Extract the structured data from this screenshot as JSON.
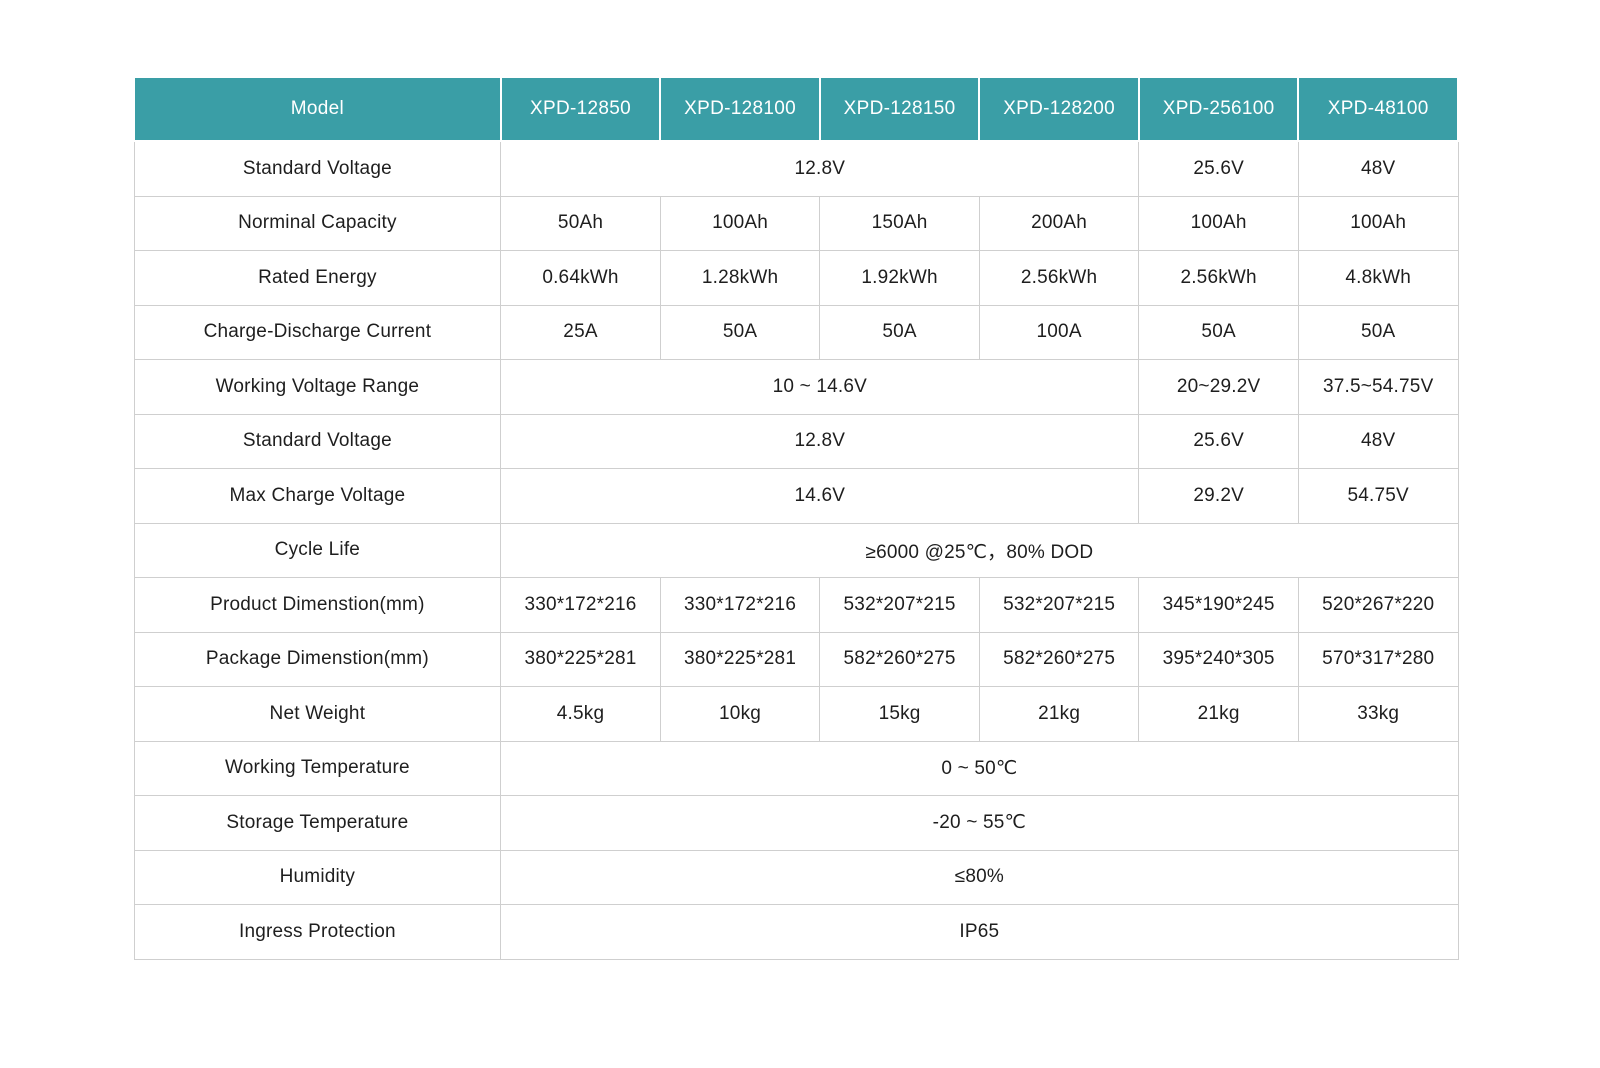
{
  "table": {
    "header_bg": "#3a9ea6",
    "header_text_color": "#ffffff",
    "border_color": "#cfcfcf",
    "columns": [
      "Model",
      "XPD-12850",
      "XPD-128100",
      "XPD-128150",
      "XPD-128200",
      "XPD-256100",
      "XPD-48100"
    ],
    "rows": [
      {
        "label": "Standard Voltage",
        "cells": [
          {
            "text": "12.8V",
            "span": 4
          },
          {
            "text": "25.6V"
          },
          {
            "text": "48V"
          }
        ]
      },
      {
        "label": "Norminal Capacity",
        "cells": [
          {
            "text": "50Ah"
          },
          {
            "text": "100Ah"
          },
          {
            "text": "150Ah"
          },
          {
            "text": "200Ah"
          },
          {
            "text": "100Ah"
          },
          {
            "text": "100Ah"
          }
        ]
      },
      {
        "label": "Rated Energy",
        "cells": [
          {
            "text": "0.64kWh"
          },
          {
            "text": "1.28kWh"
          },
          {
            "text": "1.92kWh"
          },
          {
            "text": "2.56kWh"
          },
          {
            "text": "2.56kWh"
          },
          {
            "text": "4.8kWh"
          }
        ]
      },
      {
        "label": "Charge-Discharge Current",
        "cells": [
          {
            "text": "25A"
          },
          {
            "text": "50A"
          },
          {
            "text": "50A"
          },
          {
            "text": "100A"
          },
          {
            "text": "50A"
          },
          {
            "text": "50A"
          }
        ]
      },
      {
        "label": "Working Voltage Range",
        "cells": [
          {
            "text": "10 ~ 14.6V",
            "span": 4
          },
          {
            "text": "20~29.2V"
          },
          {
            "text": "37.5~54.75V"
          }
        ]
      },
      {
        "label": "Standard Voltage",
        "cells": [
          {
            "text": "12.8V",
            "span": 4
          },
          {
            "text": "25.6V"
          },
          {
            "text": "48V"
          }
        ]
      },
      {
        "label": "Max Charge Voltage",
        "cells": [
          {
            "text": "14.6V",
            "span": 4
          },
          {
            "text": "29.2V"
          },
          {
            "text": "54.75V"
          }
        ]
      },
      {
        "label": "Cycle Life",
        "cells": [
          {
            "text": "≥6000 @25℃，80% DOD",
            "span": 6
          }
        ]
      },
      {
        "label": "Product Dimenstion(mm)",
        "cells": [
          {
            "text": "330*172*216"
          },
          {
            "text": "330*172*216"
          },
          {
            "text": "532*207*215"
          },
          {
            "text": "532*207*215"
          },
          {
            "text": "345*190*245"
          },
          {
            "text": "520*267*220"
          }
        ]
      },
      {
        "label": "Package Dimenstion(mm)",
        "cells": [
          {
            "text": "380*225*281"
          },
          {
            "text": "380*225*281"
          },
          {
            "text": "582*260*275"
          },
          {
            "text": "582*260*275"
          },
          {
            "text": "395*240*305"
          },
          {
            "text": "570*317*280"
          }
        ]
      },
      {
        "label": "Net Weight",
        "cells": [
          {
            "text": "4.5kg"
          },
          {
            "text": "10kg"
          },
          {
            "text": "15kg"
          },
          {
            "text": "21kg"
          },
          {
            "text": "21kg"
          },
          {
            "text": "33kg"
          }
        ]
      },
      {
        "label": "Working Temperature",
        "cells": [
          {
            "text": "0 ~ 50℃",
            "span": 6
          }
        ]
      },
      {
        "label": "Storage Temperature",
        "cells": [
          {
            "text": "-20 ~ 55℃",
            "span": 6
          }
        ]
      },
      {
        "label": "Humidity",
        "cells": [
          {
            "text": "≤80%",
            "span": 6
          }
        ]
      },
      {
        "label": "Ingress Protection",
        "cells": [
          {
            "text": "IP65",
            "span": 6
          }
        ]
      }
    ]
  }
}
